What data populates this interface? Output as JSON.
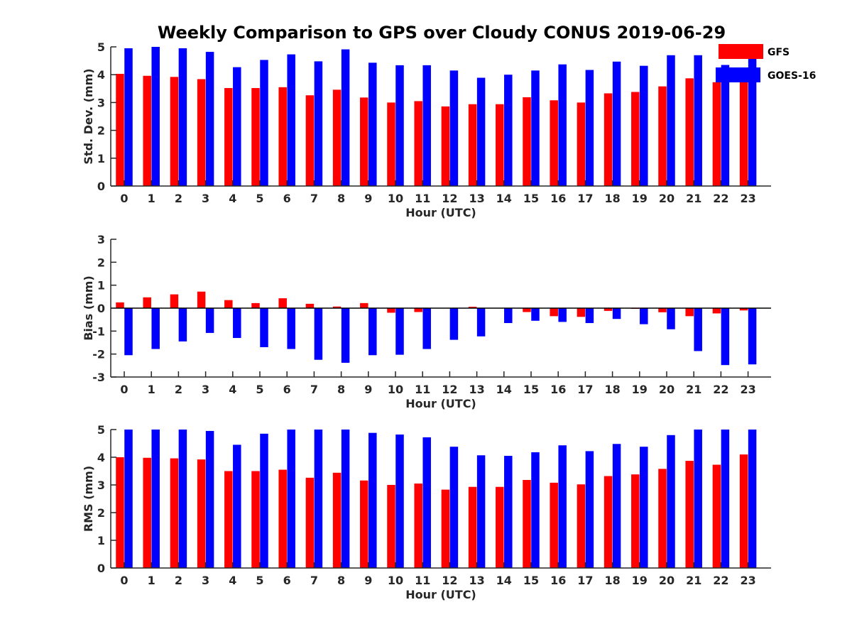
{
  "title": "Weekly Comparison to GPS over Cloudy CONUS 2019-06-29",
  "colors": {
    "GFS": "#ff0000",
    "GOES-16": "#0000ff",
    "axis": "#262626"
  },
  "legend": {
    "placement": "top-right",
    "entries": [
      "GFS",
      "GOES-16"
    ]
  },
  "chart_data": [
    {
      "type": "bar",
      "categories": [
        "0",
        "1",
        "2",
        "3",
        "4",
        "5",
        "6",
        "7",
        "8",
        "9",
        "10",
        "11",
        "12",
        "13",
        "14",
        "15",
        "16",
        "17",
        "18",
        "19",
        "20",
        "21",
        "22",
        "23"
      ],
      "xlabel": "Hour (UTC)",
      "ylabel": "Std. Dev. (mm)",
      "ylim": [
        0,
        5
      ],
      "yticks": [
        "0",
        "1",
        "2",
        "3",
        "4",
        "5"
      ],
      "grid": false,
      "series": [
        {
          "name": "GFS",
          "values": [
            4.03,
            3.96,
            3.92,
            3.84,
            3.52,
            3.52,
            3.55,
            3.26,
            3.46,
            3.18,
            3.0,
            3.05,
            2.86,
            2.94,
            2.94,
            3.19,
            3.08,
            3.0,
            3.33,
            3.38,
            3.58,
            3.87,
            3.73,
            3.73
          ]
        },
        {
          "name": "GOES-16",
          "values": [
            4.95,
            5.0,
            4.95,
            4.82,
            4.27,
            4.53,
            4.73,
            4.48,
            4.91,
            4.43,
            4.34,
            4.34,
            4.15,
            3.89,
            4.0,
            4.15,
            4.37,
            4.17,
            4.47,
            4.32,
            4.7,
            4.7,
            4.35,
            4.6
          ]
        }
      ]
    },
    {
      "type": "bar",
      "categories": [
        "0",
        "1",
        "2",
        "3",
        "4",
        "5",
        "6",
        "7",
        "8",
        "9",
        "10",
        "11",
        "12",
        "13",
        "14",
        "15",
        "16",
        "17",
        "18",
        "19",
        "20",
        "21",
        "22",
        "23"
      ],
      "xlabel": "Hour (UTC)",
      "ylabel": "Bias (mm)",
      "ylim": [
        -3,
        3
      ],
      "yticks": [
        "-3",
        "-2",
        "-1",
        "0",
        "1",
        "2",
        "3"
      ],
      "grid": false,
      "series": [
        {
          "name": "GFS",
          "values": [
            0.25,
            0.47,
            0.6,
            0.72,
            0.35,
            0.22,
            0.43,
            0.19,
            0.07,
            0.22,
            -0.2,
            -0.17,
            0.0,
            0.06,
            0.0,
            -0.17,
            -0.35,
            -0.38,
            -0.12,
            -0.03,
            -0.18,
            -0.35,
            -0.23,
            -0.1
          ]
        },
        {
          "name": "GOES-16",
          "values": [
            -2.05,
            -1.78,
            -1.45,
            -1.08,
            -1.3,
            -1.7,
            -1.78,
            -2.25,
            -2.38,
            -2.05,
            -2.03,
            -1.78,
            -1.38,
            -1.23,
            -0.65,
            -0.55,
            -0.6,
            -0.65,
            -0.47,
            -0.7,
            -0.92,
            -1.87,
            -2.48,
            -2.45
          ]
        }
      ]
    },
    {
      "type": "bar",
      "categories": [
        "0",
        "1",
        "2",
        "3",
        "4",
        "5",
        "6",
        "7",
        "8",
        "9",
        "10",
        "11",
        "12",
        "13",
        "14",
        "15",
        "16",
        "17",
        "18",
        "19",
        "20",
        "21",
        "22",
        "23"
      ],
      "xlabel": "Hour (UTC)",
      "ylabel": "RMS (mm)",
      "ylim": [
        0,
        5
      ],
      "yticks": [
        "0",
        "1",
        "2",
        "3",
        "4",
        "5"
      ],
      "grid": false,
      "series": [
        {
          "name": "GFS",
          "values": [
            4.0,
            3.98,
            3.96,
            3.92,
            3.5,
            3.5,
            3.55,
            3.26,
            3.44,
            3.16,
            3.0,
            3.05,
            2.83,
            2.93,
            2.93,
            3.18,
            3.08,
            3.02,
            3.32,
            3.38,
            3.58,
            3.87,
            3.73,
            4.1
          ]
        },
        {
          "name": "GOES-16",
          "values": [
            5.0,
            5.0,
            5.0,
            4.95,
            4.45,
            4.85,
            5.0,
            5.0,
            5.0,
            4.88,
            4.82,
            4.72,
            4.38,
            4.07,
            4.05,
            4.18,
            4.43,
            4.22,
            4.48,
            4.38,
            4.8,
            5.0,
            5.0,
            5.0
          ]
        }
      ]
    }
  ]
}
